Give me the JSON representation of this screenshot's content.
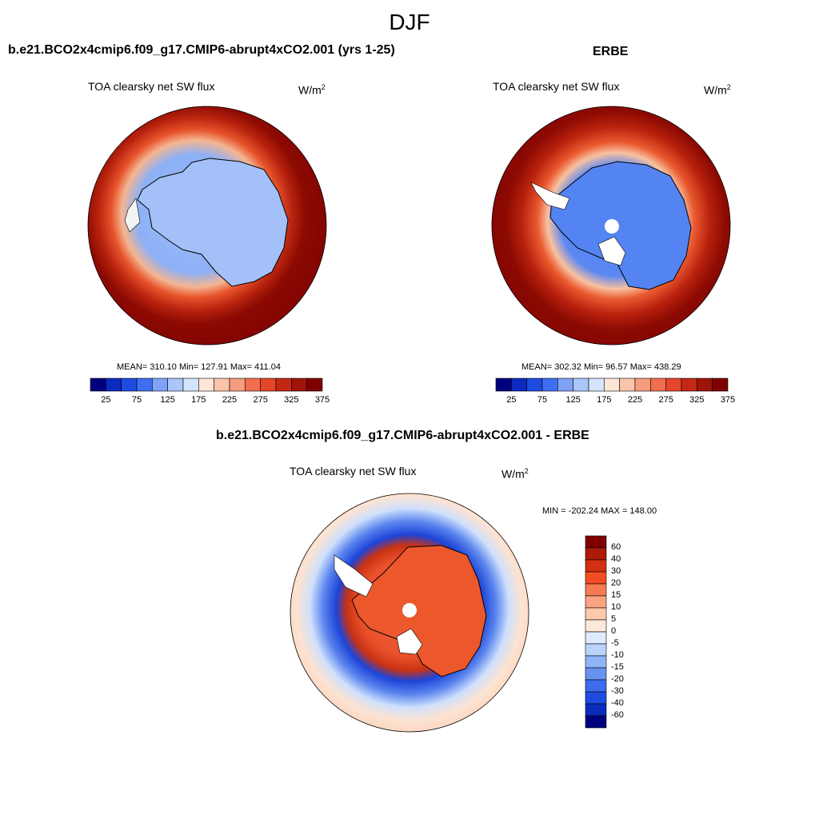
{
  "figure": {
    "title": "DJF",
    "panels": [
      {
        "id": "model",
        "case_title": "b.e21.BCO2x4cmip6.f09_g17.CMIP6-abrupt4xCO2.001 (yrs 1-25)",
        "variable": "TOA clearsky net SW flux",
        "units_base": "W/m",
        "units_exp": "2",
        "stats": "MEAN= 310.10  Min= 127.91  Max= 411.04"
      },
      {
        "id": "obs",
        "case_title": "ERBE",
        "variable": "TOA clearsky net SW flux",
        "units_base": "W/m",
        "units_exp": "2",
        "stats": "MEAN= 302.32  Min=  96.57  Max= 438.29"
      },
      {
        "id": "diff",
        "case_title": "b.e21.BCO2x4cmip6.f09_g17.CMIP6-abrupt4xCO2.001 - ERBE",
        "variable": "TOA clearsky net SW flux",
        "units_base": "W/m",
        "units_exp": "2",
        "stats": "MIN = -202.24 MAX = 148.00"
      }
    ],
    "abs_colorbar": {
      "tick_labels": [
        "25",
        "75",
        "125",
        "175",
        "225",
        "275",
        "325",
        "375"
      ],
      "colors": [
        "#00007f",
        "#0b2ac0",
        "#1e4be0",
        "#3f6ef0",
        "#7fa2f7",
        "#aac6fb",
        "#d4e4fd",
        "#fde6d6",
        "#fbc3a8",
        "#f79c7c",
        "#f26e4f",
        "#e54528",
        "#c42814",
        "#9e1409",
        "#7f0000"
      ]
    },
    "diff_colorbar": {
      "tick_labels": [
        "60",
        "40",
        "30",
        "20",
        "15",
        "10",
        "5",
        "0",
        "-5",
        "-10",
        "-15",
        "-20",
        "-30",
        "-40",
        "-60"
      ],
      "colors": [
        "#7f0000",
        "#ad1a08",
        "#d23010",
        "#f24e22",
        "#f77a52",
        "#fba380",
        "#fdc8ac",
        "#fde9dc",
        "#deebfd",
        "#b9d3fb",
        "#8fb4f7",
        "#6892f2",
        "#3c6ded",
        "#1f4be0",
        "#0b2bbd",
        "#00007f"
      ]
    }
  }
}
